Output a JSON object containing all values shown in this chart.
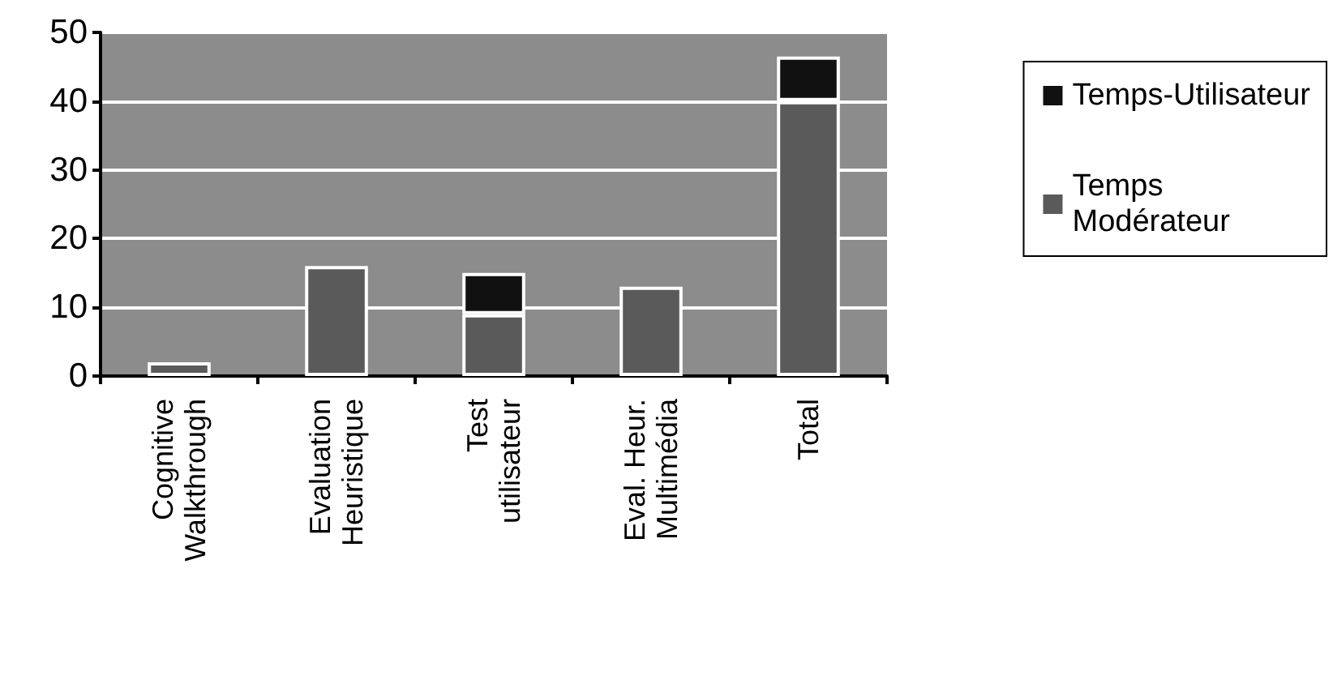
{
  "chart_data": {
    "type": "bar",
    "stacked": true,
    "categories": [
      "Cognitive\nWalkthrough",
      "Evaluation\nHeuristique",
      "Test\nutilisateur",
      "Eval. Heur.\nMultimédia",
      "Total"
    ],
    "series": [
      {
        "name": "Temps\nModérateur",
        "color": "#5a5a5a",
        "values": [
          2,
          16,
          9,
          13,
          40
        ]
      },
      {
        "name": "Temps-Utilisateur",
        "color": "#111111",
        "values": [
          null,
          null,
          6,
          null,
          6.5
        ]
      }
    ],
    "ylim": [
      0,
      50
    ],
    "yticks": [
      0,
      10,
      20,
      30,
      40,
      50
    ],
    "grid": "y",
    "legend": "right"
  }
}
